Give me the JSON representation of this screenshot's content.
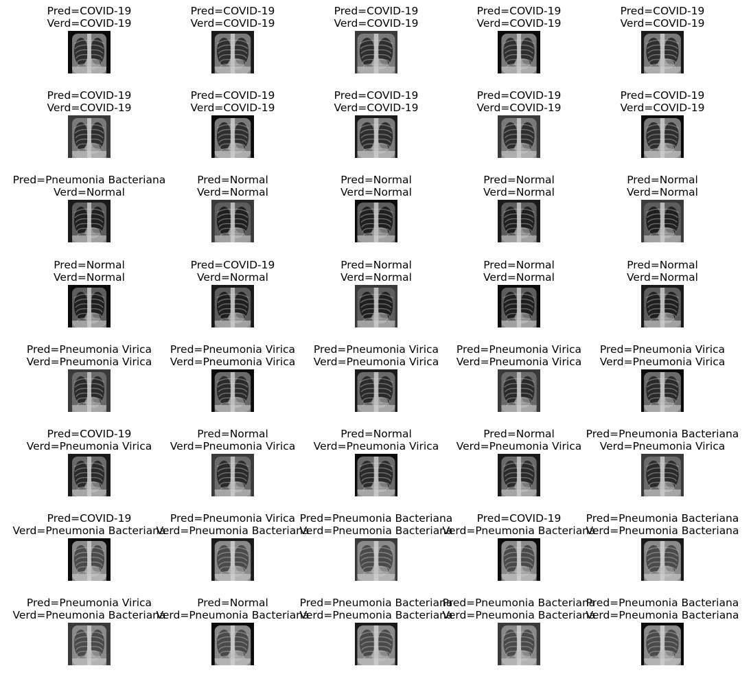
{
  "panels": [
    {
      "pred": "Pred=COVID-19",
      "verd": "Verd=COVID-19",
      "style": "covid"
    },
    {
      "pred": "Pred=COVID-19",
      "verd": "Verd=COVID-19",
      "style": "covid"
    },
    {
      "pred": "Pred=COVID-19",
      "verd": "Verd=COVID-19",
      "style": "covid"
    },
    {
      "pred": "Pred=COVID-19",
      "verd": "Verd=COVID-19",
      "style": "covid"
    },
    {
      "pred": "Pred=COVID-19",
      "verd": "Verd=COVID-19",
      "style": "covid"
    },
    {
      "pred": "Pred=COVID-19",
      "verd": "Verd=COVID-19",
      "style": "covid"
    },
    {
      "pred": "Pred=COVID-19",
      "verd": "Verd=COVID-19",
      "style": "covid"
    },
    {
      "pred": "Pred=COVID-19",
      "verd": "Verd=COVID-19",
      "style": "covid"
    },
    {
      "pred": "Pred=COVID-19",
      "verd": "Verd=COVID-19",
      "style": "covid"
    },
    {
      "pred": "Pred=COVID-19",
      "verd": "Verd=COVID-19",
      "style": "covid"
    },
    {
      "pred": "Pred=Pneumonia Bacteriana",
      "verd": "Verd=Normal",
      "style": "normal"
    },
    {
      "pred": "Pred=Normal",
      "verd": "Verd=Normal",
      "style": "normal"
    },
    {
      "pred": "Pred=Normal",
      "verd": "Verd=Normal",
      "style": "normal"
    },
    {
      "pred": "Pred=Normal",
      "verd": "Verd=Normal",
      "style": "normal"
    },
    {
      "pred": "Pred=Normal",
      "verd": "Verd=Normal",
      "style": "normal"
    },
    {
      "pred": "Pred=Normal",
      "verd": "Verd=Normal",
      "style": "normal"
    },
    {
      "pred": "Pred=COVID-19",
      "verd": "Verd=Normal",
      "style": "normal"
    },
    {
      "pred": "Pred=Normal",
      "verd": "Verd=Normal",
      "style": "normal"
    },
    {
      "pred": "Pred=Normal",
      "verd": "Verd=Normal",
      "style": "normal"
    },
    {
      "pred": "Pred=Normal",
      "verd": "Verd=Normal",
      "style": "normal"
    },
    {
      "pred": "Pred=Pneumonia Virica",
      "verd": "Verd=Pneumonia Virica",
      "style": "viral"
    },
    {
      "pred": "Pred=Pneumonia Virica",
      "verd": "Verd=Pneumonia Virica",
      "style": "viral"
    },
    {
      "pred": "Pred=Pneumonia Virica",
      "verd": "Verd=Pneumonia Virica",
      "style": "viral"
    },
    {
      "pred": "Pred=Pneumonia Virica",
      "verd": "Verd=Pneumonia Virica",
      "style": "viral"
    },
    {
      "pred": "Pred=Pneumonia Virica",
      "verd": "Verd=Pneumonia Virica",
      "style": "viral"
    },
    {
      "pred": "Pred=COVID-19",
      "verd": "Verd=Pneumonia Virica",
      "style": "viral"
    },
    {
      "pred": "Pred=Normal",
      "verd": "Verd=Pneumonia Virica",
      "style": "viral"
    },
    {
      "pred": "Pred=Normal",
      "verd": "Verd=Pneumonia Virica",
      "style": "viral"
    },
    {
      "pred": "Pred=Normal",
      "verd": "Verd=Pneumonia Virica",
      "style": "viral"
    },
    {
      "pred": "Pred=Pneumonia Bacteriana",
      "verd": "Verd=Pneumonia Virica",
      "style": "viral"
    },
    {
      "pred": "Pred=COVID-19",
      "verd": "Verd=Pneumonia Bacteriana",
      "style": "bact"
    },
    {
      "pred": "Pred=Pneumonia Virica",
      "verd": "Verd=Pneumonia Bacteriana",
      "style": "bact"
    },
    {
      "pred": "Pred=Pneumonia Bacteriana",
      "verd": "Verd=Pneumonia Bacteriana",
      "style": "bact"
    },
    {
      "pred": "Pred=COVID-19",
      "verd": "Verd=Pneumonia Bacteriana",
      "style": "bact"
    },
    {
      "pred": "Pred=Pneumonia Bacteriana",
      "verd": "Verd=Pneumonia Bacteriana",
      "style": "bact"
    },
    {
      "pred": "Pred=Pneumonia Virica",
      "verd": "Verd=Pneumonia Bacteriana",
      "style": "bact"
    },
    {
      "pred": "Pred=Normal",
      "verd": "Verd=Pneumonia Bacteriana",
      "style": "bact"
    },
    {
      "pred": "Pred=Pneumonia Bacteriana",
      "verd": "Verd=Pneumonia Bacteriana",
      "style": "bact"
    },
    {
      "pred": "Pred=Pneumonia Bacteriana",
      "verd": "Verd=Pneumonia Bacteriana",
      "style": "bact"
    },
    {
      "pred": "Pred=Pneumonia Bacteriana",
      "verd": "Verd=Pneumonia Bacteriana",
      "style": "bact"
    }
  ],
  "colors": {
    "background": "#ffffff",
    "text": "#000000",
    "image_background": "#0a0a0a"
  }
}
